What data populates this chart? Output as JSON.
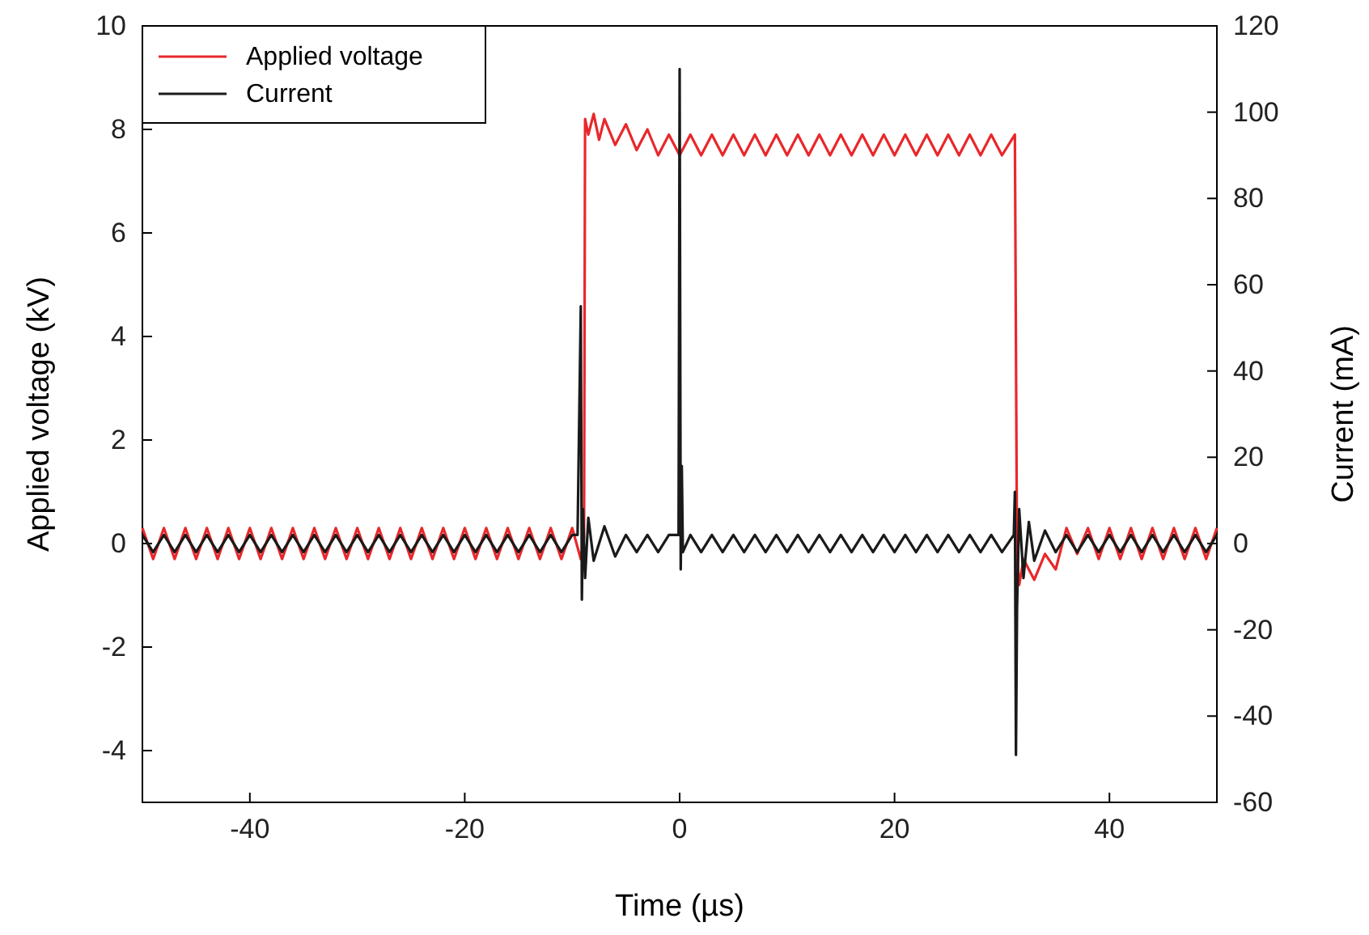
{
  "chart_data": {
    "type": "line",
    "xlabel": "Time (µs)",
    "ylabel": "Applied voltage (kV)",
    "y2label": "Current (mA)",
    "xlim": [
      -50,
      50
    ],
    "xticks": [
      -40,
      -20,
      0,
      20,
      40
    ],
    "ylim": [
      -5,
      10
    ],
    "yticks": [
      -4,
      -2,
      0,
      2,
      4,
      6,
      8,
      10
    ],
    "y2lim": [
      -60,
      120
    ],
    "y2ticks": [
      -60,
      -40,
      -20,
      0,
      20,
      40,
      60,
      80,
      100,
      120
    ],
    "legend": "top left",
    "grid": false,
    "line_style": "solid",
    "marker": "none",
    "series": [
      {
        "name": "Applied voltage",
        "color": "#e8282b",
        "x": [
          -50,
          -49,
          -48,
          -47,
          -46,
          -45,
          -44,
          -43,
          -42,
          -41,
          -40,
          -39,
          -38,
          -37,
          -36,
          -35,
          -34,
          -33,
          -32,
          -31,
          -30,
          -29,
          -28,
          -27,
          -26,
          -25,
          -24,
          -23,
          -22,
          -21,
          -20,
          -19,
          -18,
          -17,
          -16,
          -15,
          -14,
          -13,
          -12,
          -11,
          -10,
          -9.2,
          -8.9,
          -8.8,
          -8.5,
          -8,
          -7.5,
          -7,
          -6,
          -5,
          -4,
          -3,
          -2,
          -1,
          0,
          1,
          2,
          3,
          4,
          5,
          6,
          7,
          8,
          9,
          10,
          11,
          12,
          13,
          14,
          15,
          16,
          17,
          18,
          19,
          20,
          21,
          22,
          23,
          24,
          25,
          26,
          27,
          28,
          29,
          30,
          31.2,
          31.4,
          31.6,
          32,
          33,
          34,
          35,
          36,
          37,
          38,
          39,
          40,
          41,
          42,
          43,
          44,
          45,
          46,
          47,
          48,
          49,
          50
        ],
        "values": [
          0.3,
          -0.3,
          0.3,
          -0.3,
          0.3,
          -0.3,
          0.3,
          -0.3,
          0.3,
          -0.3,
          0.3,
          -0.3,
          0.3,
          -0.3,
          0.3,
          -0.3,
          0.3,
          -0.3,
          0.3,
          -0.3,
          0.3,
          -0.3,
          0.3,
          -0.3,
          0.3,
          -0.3,
          0.3,
          -0.3,
          0.3,
          -0.3,
          0.3,
          -0.3,
          0.3,
          -0.3,
          0.3,
          -0.3,
          0.3,
          -0.3,
          0.3,
          -0.3,
          0.3,
          -0.3,
          0.1,
          8.2,
          7.9,
          8.3,
          7.8,
          8.2,
          7.7,
          8.1,
          7.6,
          8.0,
          7.5,
          7.9,
          7.5,
          7.9,
          7.5,
          7.9,
          7.5,
          7.9,
          7.5,
          7.9,
          7.5,
          7.9,
          7.5,
          7.9,
          7.5,
          7.9,
          7.5,
          7.9,
          7.5,
          7.9,
          7.5,
          7.9,
          7.5,
          7.9,
          7.5,
          7.9,
          7.5,
          7.9,
          7.5,
          7.9,
          7.5,
          7.9,
          7.5,
          7.9,
          -0.3,
          -0.8,
          -0.3,
          -0.7,
          -0.2,
          -0.5,
          0.3,
          -0.2,
          0.3,
          -0.3,
          0.3,
          -0.3,
          0.3,
          -0.3,
          0.3,
          -0.3,
          0.3,
          -0.3,
          0.3,
          -0.3,
          0.3
        ]
      },
      {
        "name": "Current",
        "color": "#1a1a1a",
        "axis": "y2",
        "x": [
          -50,
          -49,
          -48,
          -47,
          -46,
          -45,
          -44,
          -43,
          -42,
          -41,
          -40,
          -39,
          -38,
          -37,
          -36,
          -35,
          -34,
          -33,
          -32,
          -31,
          -30,
          -29,
          -28,
          -27,
          -26,
          -25,
          -24,
          -23,
          -22,
          -21,
          -20,
          -19,
          -18,
          -17,
          -16,
          -15,
          -14,
          -13,
          -12,
          -11,
          -10,
          -9.5,
          -9.2,
          -9.1,
          -9,
          -8.8,
          -8.5,
          -8,
          -7,
          -6,
          -5,
          -4,
          -3,
          -2,
          -1,
          -0.1,
          0,
          0.1,
          0.2,
          0.3,
          1,
          2,
          3,
          4,
          5,
          6,
          7,
          8,
          9,
          10,
          11,
          12,
          13,
          14,
          15,
          16,
          17,
          18,
          19,
          20,
          21,
          22,
          23,
          24,
          25,
          26,
          27,
          28,
          29,
          30,
          31.1,
          31.2,
          31.3,
          31.4,
          31.6,
          32,
          32.5,
          33,
          34,
          35,
          36,
          37,
          38,
          39,
          40,
          41,
          42,
          43,
          44,
          45,
          46,
          47,
          48,
          49,
          50
        ],
        "values": [
          2,
          -2,
          2,
          -2,
          2,
          -2,
          2,
          -2,
          2,
          -2,
          2,
          -2,
          2,
          -2,
          2,
          -2,
          2,
          -2,
          2,
          -2,
          2,
          -2,
          2,
          -2,
          2,
          -2,
          2,
          -2,
          2,
          -2,
          2,
          -2,
          2,
          -2,
          2,
          -2,
          2,
          -2,
          2,
          -2,
          2,
          2,
          55,
          -13,
          8,
          -8,
          6,
          -4,
          4,
          -3,
          2,
          -2,
          2,
          -2,
          2,
          2,
          110,
          -6,
          18,
          -2,
          2,
          -2,
          2,
          -2,
          2,
          -2,
          2,
          -2,
          2,
          -2,
          2,
          -2,
          2,
          -2,
          2,
          -2,
          2,
          -2,
          2,
          -2,
          2,
          -2,
          2,
          -2,
          2,
          -2,
          2,
          -2,
          2,
          -2,
          2,
          12,
          -49,
          -15,
          8,
          -8,
          5,
          -4,
          3,
          -2,
          2,
          -2,
          2,
          -2,
          2,
          -2,
          2,
          -2,
          2,
          -2,
          2,
          -2,
          2,
          -2,
          2
        ]
      }
    ]
  }
}
